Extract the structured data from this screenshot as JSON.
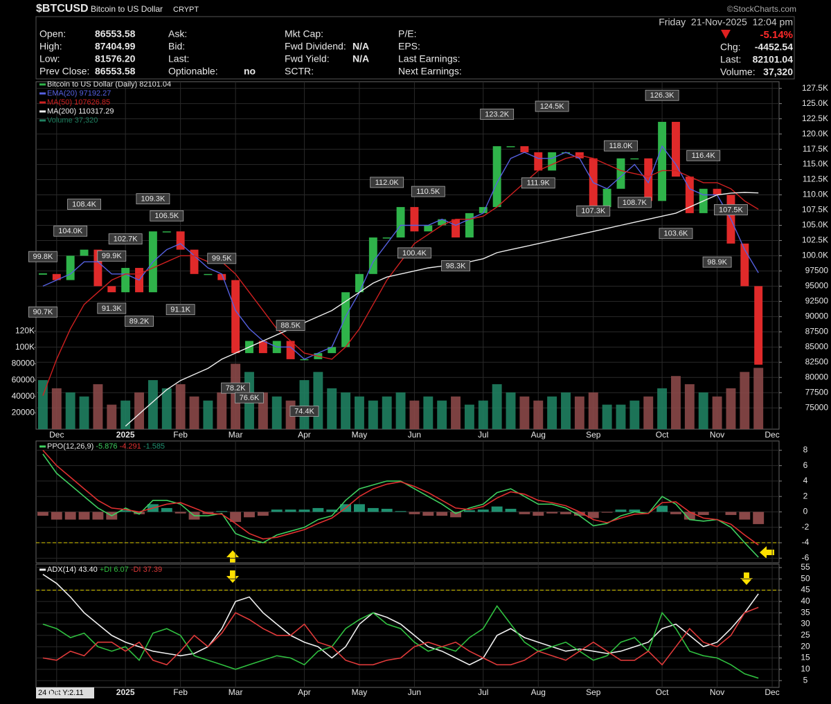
{
  "header": {
    "ticker": "$BTCUSD",
    "name": "Bitcoin to US Dollar",
    "exchange": "CRYPT",
    "watermark": "©StockCharts.com",
    "date": "Friday  21-Nov-2025  12:04 pm",
    "change_pct": "-5.14%",
    "chg_label": "Chg:",
    "chg": "-4452.54",
    "last_label": "Last:",
    "last": "82101.04",
    "volume_label": "Volume:",
    "volume": "37,320",
    "quote": [
      [
        {
          "label": "Open:",
          "value": "86553.58"
        },
        {
          "label": "High:",
          "value": "87404.99"
        },
        {
          "label": "Low:",
          "value": "81576.20"
        },
        {
          "label": "Prev Close:",
          "value": "86553.58"
        }
      ],
      [
        {
          "label": "Ask:"
        },
        {
          "label": "Bid:"
        },
        {
          "label": "Last:"
        },
        {
          "label": "Optionable:",
          "value": "no"
        }
      ],
      [
        {
          "label": "Mkt Cap:"
        },
        {
          "label": "Fwd Dividend:",
          "value": "N/A"
        },
        {
          "label": "Fwd Yield:",
          "value": "N/A"
        },
        {
          "label": "SCTR:"
        }
      ],
      [
        {
          "label": "P/E:"
        },
        {
          "label": "EPS:"
        },
        {
          "label": "Last Earnings:"
        },
        {
          "label": "Next Earnings:"
        }
      ]
    ]
  },
  "chart_data": [
    {
      "type": "stock",
      "categories": [
        null,
        "Dec",
        null,
        null,
        null,
        null,
        "2025",
        null,
        null,
        null,
        "Feb",
        null,
        null,
        null,
        "Mar",
        null,
        null,
        null,
        null,
        "Apr",
        null,
        null,
        null,
        "May",
        null,
        null,
        null,
        "Jun",
        null,
        null,
        null,
        null,
        "Jul",
        null,
        null,
        null,
        "Aug",
        null,
        null,
        null,
        "Sep",
        null,
        null,
        null,
        null,
        "Oct",
        null,
        null,
        null,
        "Nov",
        null,
        null,
        null,
        "Dec"
      ],
      "ylim": [
        71500,
        128600
      ],
      "yticks": [
        75000,
        77500,
        80000,
        82500,
        85000,
        87500,
        90000,
        92500,
        95000,
        97500,
        {
          "value": 100000,
          "label": "100.0K"
        },
        {
          "value": 102500,
          "label": "102.5K"
        },
        {
          "value": 105000,
          "label": "105.0K"
        },
        {
          "value": 107500,
          "label": "107.5K"
        },
        {
          "value": 110000,
          "label": "110.0K"
        },
        {
          "value": 112500,
          "label": "112.5K"
        },
        {
          "value": 115000,
          "label": "115.0K"
        },
        {
          "value": 117500,
          "label": "117.5K"
        },
        {
          "value": 120000,
          "label": "120.0K"
        },
        {
          "value": 122500,
          "label": "122.5K"
        },
        {
          "value": 125000,
          "label": "125.0K"
        },
        {
          "value": 127500,
          "label": "127.5K"
        }
      ],
      "y2lim": [
        0,
        425000
      ],
      "y2ticks": [
        20000,
        40000,
        60000,
        80000,
        {
          "value": 100000,
          "label": "100K"
        },
        {
          "value": 120000,
          "label": "120K"
        }
      ],
      "grid": true,
      "series": [
        {
          "name": "Bitcoin to US Dollar (Daily)",
          "last": "82101.04",
          "style": "candle",
          "color": "#e0e0e0",
          "up_color": "#2fb34a",
          "down_color": "#e02a2a",
          "values": [
            97000,
            96000,
            100000,
            101000,
            95000,
            94000,
            98000,
            94000,
            104000,
            104000,
            101000,
            97000,
            97000,
            96000,
            84000,
            86000,
            84000,
            86000,
            83000,
            83000,
            84000,
            85000,
            94000,
            97000,
            103000,
            103000,
            108000,
            104000,
            105000,
            106000,
            103000,
            107000,
            108000,
            118000,
            118000,
            117000,
            114000,
            117000,
            117000,
            116000,
            108000,
            111000,
            116000,
            116000,
            109000,
            122000,
            113000,
            107000,
            111000,
            110000,
            102000,
            95000,
            82101.04,
            null
          ]
        },
        {
          "name": "EMA(20)",
          "last": "97192.27",
          "style": "line",
          "color": "#5560e0",
          "values": [
            95000,
            96000,
            97000,
            99000,
            99000,
            97000,
            97000,
            96000,
            99000,
            101000,
            102000,
            100000,
            98000,
            97000,
            91000,
            88000,
            86000,
            85000,
            85000,
            83000,
            84000,
            85000,
            90000,
            94000,
            99000,
            102000,
            105000,
            105000,
            105000,
            106000,
            105000,
            106000,
            107000,
            112000,
            116000,
            117000,
            116000,
            116000,
            117000,
            116000,
            112000,
            111000,
            113000,
            115000,
            112000,
            118000,
            115000,
            111000,
            110000,
            110000,
            106000,
            101000,
            97192.27,
            null
          ]
        },
        {
          "name": "MA(50)",
          "last": "107626.85",
          "style": "line",
          "color": "#d02020",
          "values": [
            77000,
            83000,
            88000,
            92000,
            94000,
            96000,
            97000,
            97000,
            98000,
            99000,
            100000,
            100000,
            99000,
            99000,
            97000,
            94000,
            91000,
            88000,
            86000,
            84000,
            83500,
            83000,
            85000,
            88000,
            92000,
            96000,
            99000,
            102000,
            103500,
            105000,
            106000,
            106000,
            106500,
            108000,
            110000,
            112000,
            114000,
            115000,
            116000,
            116500,
            116000,
            115000,
            114000,
            113500,
            113000,
            114000,
            114000,
            113000,
            112000,
            112000,
            111000,
            109000,
            107626.85,
            null
          ]
        },
        {
          "name": "MA(200)",
          "last": "110317.29",
          "style": "line",
          "color": "#f0f0f0",
          "values": [
            null,
            null,
            null,
            null,
            null,
            null,
            72000,
            74000,
            76000,
            78000,
            79500,
            80500,
            81500,
            83000,
            84000,
            85000,
            86000,
            87000,
            88000,
            89000,
            90000,
            91000,
            92500,
            94000,
            95500,
            96500,
            97000,
            97500,
            98000,
            98300,
            98600,
            99000,
            99500,
            100500,
            101000,
            101500,
            102000,
            102500,
            103000,
            103500,
            104000,
            104500,
            105000,
            105500,
            106000,
            106500,
            107000,
            108000,
            109000,
            110000,
            110300,
            110400,
            110317.29,
            null
          ]
        },
        {
          "name": "Volume",
          "last": "37,320",
          "style": "bar",
          "axis": "y2",
          "color": "#1f8060",
          "down_color": "#8a4848",
          "values": [
            60000,
            50000,
            45000,
            40000,
            55000,
            30000,
            35000,
            45000,
            60000,
            50000,
            55000,
            40000,
            35000,
            45000,
            80000,
            70000,
            45000,
            40000,
            35000,
            60000,
            70000,
            50000,
            45000,
            40000,
            35000,
            40000,
            45000,
            35000,
            40000,
            35000,
            40000,
            30000,
            35000,
            55000,
            45000,
            40000,
            35000,
            40000,
            45000,
            40000,
            45000,
            30000,
            30000,
            35000,
            40000,
            50000,
            65000,
            55000,
            45000,
            40000,
            50000,
            70000,
            75000,
            null
          ]
        }
      ],
      "annotations": [
        {
          "text": "99.8K",
          "value": 99800,
          "at": 0
        },
        {
          "text": "90.7K",
          "value": 90700,
          "at": 0
        },
        {
          "text": "104.0K",
          "value": 104000,
          "at": 2
        },
        {
          "text": "108.4K",
          "value": 108400,
          "at": 3
        },
        {
          "text": "99.9K",
          "value": 99900,
          "at": 5
        },
        {
          "text": "91.3K",
          "value": 91300,
          "at": 5
        },
        {
          "text": "102.7K",
          "value": 102700,
          "at": 6
        },
        {
          "text": "89.2K",
          "value": 89200,
          "at": 7
        },
        {
          "text": "109.3K",
          "value": 109300,
          "at": 8
        },
        {
          "text": "106.5K",
          "value": 106500,
          "at": 9
        },
        {
          "text": "91.1K",
          "value": 91100,
          "at": 10
        },
        {
          "text": "99.5K",
          "value": 99500,
          "at": 13
        },
        {
          "text": "78.2K",
          "value": 78200,
          "at": 14
        },
        {
          "text": "76.6K",
          "value": 76600,
          "at": 15
        },
        {
          "text": "88.5K",
          "value": 88500,
          "at": 18
        },
        {
          "text": "74.4K",
          "value": 74400,
          "at": 19
        },
        {
          "text": "112.0K",
          "value": 112000,
          "at": 25
        },
        {
          "text": "100.4K",
          "value": 100400,
          "at": 27
        },
        {
          "text": "110.5K",
          "value": 110500,
          "at": 28
        },
        {
          "text": "98.3K",
          "value": 98300,
          "at": 30
        },
        {
          "text": "123.2K",
          "value": 123200,
          "at": 33
        },
        {
          "text": "111.9K",
          "value": 111900,
          "at": 36
        },
        {
          "text": "124.5K",
          "value": 124500,
          "at": 37
        },
        {
          "text": "107.3K",
          "value": 107300,
          "at": 40
        },
        {
          "text": "118.0K",
          "value": 118000,
          "at": 42
        },
        {
          "text": "108.7K",
          "value": 108700,
          "at": 43
        },
        {
          "text": "126.3K",
          "value": 126300,
          "at": 45
        },
        {
          "text": "103.6K",
          "value": 103600,
          "at": 46
        },
        {
          "text": "116.4K",
          "value": 116400,
          "at": 48
        },
        {
          "text": "98.9K",
          "value": 98900,
          "at": 49
        },
        {
          "text": "107.5K",
          "value": 107500,
          "at": 50
        }
      ]
    },
    {
      "type": "indicator",
      "indicator": "PPO(12,26,9)",
      "ylim": [
        -6.6,
        9.2
      ],
      "yticks": [
        8,
        6,
        4,
        2,
        0,
        -2,
        -4,
        -6
      ],
      "hlines": [
        -4
      ],
      "grid": true,
      "series": [
        {
          "last": "-5.876",
          "style": "line",
          "color": "#3fd060",
          "values": [
            7.5,
            5,
            3.5,
            2,
            0.5,
            -0.5,
            0.5,
            -0.3,
            1.5,
            1.5,
            1,
            -0.5,
            -0.5,
            -0.2,
            -2.8,
            -3.5,
            -4,
            -3,
            -2.5,
            -2,
            -1,
            -0.5,
            1.5,
            3,
            3.5,
            4,
            4,
            3,
            2,
            1,
            -0.2,
            0.5,
            1,
            2.5,
            3,
            2,
            1,
            1,
            0.5,
            -0.5,
            -1.8,
            -1.5,
            -0.5,
            0,
            -0.2,
            2,
            1,
            -1,
            -1.2,
            -1,
            -2,
            -4,
            -5.876,
            null
          ]
        },
        {
          "last": "-4.291",
          "style": "line",
          "color": "#e03030",
          "values": [
            8,
            6,
            4.5,
            3,
            1.5,
            0.5,
            0.3,
            0,
            0.5,
            1,
            1.2,
            0.5,
            -0.2,
            -0.3,
            -1.5,
            -2.8,
            -3.5,
            -3.3,
            -2.8,
            -2.3,
            -1.5,
            -0.8,
            0.5,
            2,
            3,
            3.6,
            3.9,
            3.3,
            2.5,
            1.5,
            0.5,
            0.3,
            0.7,
            1.8,
            2.6,
            2.3,
            1.5,
            1.2,
            0.8,
            0,
            -1,
            -1.4,
            -0.8,
            -0.3,
            -0.2,
            1.2,
            1.3,
            0,
            -0.8,
            -1,
            -1.6,
            -3,
            -4.291,
            null
          ]
        },
        {
          "last": "-1.585",
          "style": "bar",
          "color": "#1f9070",
          "down_color": "#8a4848",
          "values": [
            -0.5,
            -1,
            -1,
            -1,
            -1,
            -1,
            0.2,
            -0.3,
            1,
            0.5,
            -0.2,
            -1,
            -0.3,
            0.1,
            -1.3,
            -0.7,
            -0.5,
            0.3,
            0.3,
            0.3,
            0.5,
            0.3,
            1,
            1,
            0.5,
            0.4,
            0.1,
            -0.3,
            -0.5,
            -0.5,
            -0.7,
            0.2,
            0.3,
            0.7,
            0.4,
            -0.3,
            -0.5,
            -0.2,
            -0.3,
            -0.5,
            -0.8,
            -0.1,
            0.3,
            0.3,
            0,
            0.8,
            -0.3,
            -1,
            -0.4,
            0,
            -0.4,
            -1,
            -1.585,
            null
          ]
        }
      ]
    },
    {
      "type": "indicator",
      "ylim": [
        2,
        56.5
      ],
      "yticks": [
        5,
        10,
        15,
        20,
        25,
        30,
        35,
        40,
        45,
        50,
        55
      ],
      "hlines": [
        45
      ],
      "grid": true,
      "readout": "24 Oct Y:2.11",
      "series": [
        {
          "name": "ADX(14)",
          "last": "43.40",
          "style": "line",
          "color": "#f0f0f0",
          "values": [
            52,
            48,
            42,
            35,
            30,
            25,
            22,
            20,
            18,
            17,
            16,
            17,
            20,
            28,
            40,
            42,
            35,
            30,
            25,
            22,
            20,
            15,
            20,
            30,
            35,
            33,
            30,
            25,
            20,
            18,
            15,
            12,
            15,
            25,
            28,
            24,
            22,
            20,
            18,
            19,
            18,
            17,
            18,
            20,
            22,
            28,
            30,
            25,
            20,
            22,
            28,
            35,
            43.4,
            null
          ]
        },
        {
          "name": "+DI",
          "last": "6.07",
          "style": "line",
          "color": "#30c040",
          "values": [
            30,
            28,
            24,
            26,
            20,
            18,
            20,
            14,
            26,
            28,
            25,
            16,
            14,
            12,
            10,
            12,
            14,
            16,
            15,
            12,
            18,
            20,
            28,
            32,
            35,
            30,
            28,
            22,
            18,
            20,
            18,
            24,
            28,
            38,
            30,
            22,
            18,
            20,
            22,
            18,
            14,
            16,
            22,
            24,
            18,
            35,
            28,
            18,
            16,
            15,
            12,
            8,
            6.07,
            null
          ]
        },
        {
          "name": "-DI",
          "last": "37.39",
          "style": "line",
          "color": "#e03a3a",
          "values": [
            15,
            14,
            18,
            16,
            22,
            22,
            18,
            22,
            14,
            12,
            18,
            25,
            20,
            26,
            35,
            32,
            28,
            25,
            25,
            30,
            22,
            20,
            14,
            12,
            12,
            14,
            15,
            20,
            22,
            20,
            22,
            18,
            15,
            12,
            12,
            14,
            18,
            16,
            14,
            18,
            22,
            18,
            14,
            14,
            18,
            12,
            20,
            28,
            22,
            20,
            25,
            35,
            37.39,
            null
          ]
        }
      ]
    }
  ]
}
